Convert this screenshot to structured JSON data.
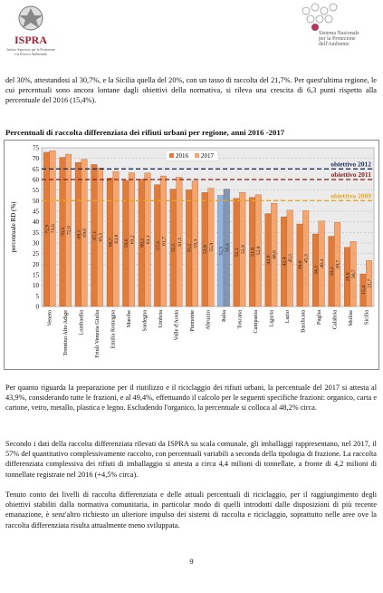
{
  "header": {
    "left_logo": {
      "name": "ISPRA",
      "subtitle_lines": [
        "Istituto Superiore per la Protezione",
        "e la Ricerca Ambientale"
      ]
    },
    "right_logo": {
      "lines": [
        "Sistema Nazionale",
        "per la Protezione",
        "dell'Ambiente"
      ]
    }
  },
  "paragraphs": [
    "del 30%, attestandosi al 30,7%, e la Sicilia  quella del 20%, con un tasso di raccolta del 21,7%. Per quest'ultima regione, le cui percentuali sono ancora lontane dagli obiettivi della normativa, si rileva una crescita di 6,3 punti rispetto alla percentuale del 2016 (15,4%).",
    "Per quanto riguarda la preparazione per il riutilizzo e il riciclaggio dei rifiuti urbani, la percentuale del 2017 si attesta al 43,9%, considerando tutte le frazioni, e al 49,4%, effettuando il calcolo per le seguenti specifiche frazioni: organico, carta e cartone, vetro, metallo, plastica e legno. Escludendo l'organico, la percentuale si colloca al 48,2% circa.",
    "Secondo i dati della raccolta differenziata rilevati da ISPRA su scala comunale, gli imballaggi rappresentano, nel 2017,  il 57% del quantitativo complessivamente raccolto, con percentuali variabili a seconda della tipologia di frazione. La raccolta differenziata complessiva dei rifiuti di imballaggio si attesta a circa 4,4 milioni di tonnellate, a fronte di 4,2 milioni di tonnellate registrate nel 2016 (+4,5% circa).",
    "Tenuto conto dei livelli di raccolta differenziata e delle attuali  percentuali di riciclaggio, per il raggiungimento degli obiettivi stabiliti dalla normativa comunitaria, in particolar modo di quelli introdotti dalle disposizioni di più recente emanazione, è senz'altro richiesto un ulteriore impulso dei sistemi di raccolta e riciclaggio, soprattutto nelle aree ove la raccolta differenziata risulta attualmente meno sviluppata."
  ],
  "chart_data": {
    "type": "bar",
    "title": "Percentuali di raccolta differenziata dei rifiuti urbani per regione, anni 2016 -2017",
    "y_label": "percentuale RD (%)",
    "categories": [
      "Veneto",
      "Trentino Alto Adige",
      "Lombardia",
      "Friuli Venezia Giulia",
      "Emilia Romagna",
      "Marche",
      "Sardegna",
      "Umbria",
      "Valle d'Aosta",
      "Piemonte",
      "Abruzzo",
      "Italia",
      "Toscana",
      "Campania",
      "Liguria",
      "Lazio",
      "Basilicata",
      "Puglia",
      "Calabria",
      "Molise",
      "Sicilia"
    ],
    "series": [
      {
        "name": "2016",
        "color": "#e07b39",
        "highlight_color": "#8db4e2",
        "values": [
          72.9,
          70.5,
          68.1,
          67.1,
          60.7,
          59.6,
          60.2,
          57.6,
          55.5,
          55.2,
          53.9,
          52.5,
          51.1,
          51.6,
          43.9,
          42.4,
          39.0,
          34.3,
          33.2,
          28.0,
          15.4
        ],
        "value_labels": [
          "72,9",
          "70,5",
          "68,1",
          "67,1",
          "60,7",
          "59,6",
          "60,2",
          "57,6",
          "55,5",
          "55,2",
          "53,9",
          "52,5",
          "51,1",
          "51,6",
          "43,9",
          "42,4",
          "39,0",
          "34,3",
          "33,2",
          "28,0",
          "15,4"
        ]
      },
      {
        "name": "2017",
        "color": "#f5a66e",
        "highlight_color": "#7f97b8",
        "values": [
          73.6,
          72.0,
          69.6,
          65.5,
          63.8,
          63.2,
          63.1,
          61.7,
          61.1,
          59.3,
          55.9,
          55.5,
          53.9,
          52.8,
          48.8,
          45.5,
          45.3,
          40.4,
          39.7,
          30.7,
          21.7
        ],
        "value_labels": [
          "73,6",
          "72,0",
          "69,6",
          "65,5",
          "63,8",
          "63,2",
          "63,1",
          "61,7",
          "61,1",
          "59,3",
          "55,9",
          "55,5",
          "53,9",
          "52,8",
          "48,8",
          "45,5",
          "45,3",
          "40,4",
          "39,7",
          "30,7",
          "21,7"
        ]
      }
    ],
    "highlight_index": 11,
    "ylim": [
      0,
      75
    ],
    "yticks": [
      0,
      5,
      10,
      15,
      20,
      25,
      30,
      35,
      40,
      45,
      50,
      55,
      60,
      65,
      70,
      75
    ],
    "grid": true,
    "reference_lines": [
      {
        "label": "obiettivo 2012",
        "value": 65,
        "color": "#1f2d5c"
      },
      {
        "label": "obiettivo 2011",
        "value": 60,
        "color": "#8b1a1a"
      },
      {
        "label": "obiettivo 2009",
        "value": 50,
        "color": "#e3a820"
      }
    ]
  },
  "page_number": "9"
}
